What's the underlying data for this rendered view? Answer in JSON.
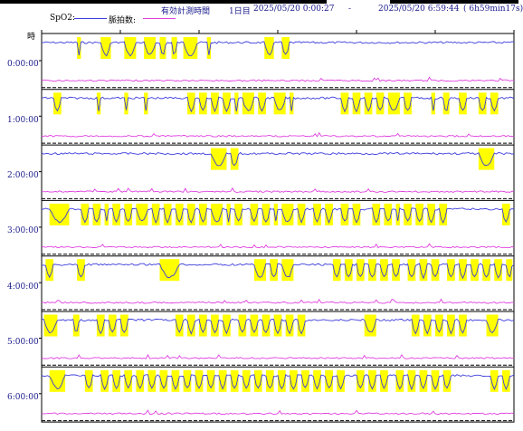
{
  "header": {
    "label": "有効計測時間",
    "day": "1日目",
    "start": "2025/05/20  0:00:27",
    "dash": "-",
    "end": "2025/05/20  6:59:44",
    "duration": "( 6h59min17s)"
  },
  "legend": {
    "spo2_label": "SpO2:",
    "pulse_label": "脈拍数:",
    "spo2_color": "#3c3cdc",
    "pulse_color": "#e040e0"
  },
  "y_axis_label": "時",
  "highlight_color": "#ffff00",
  "chart_data": {
    "type": "line",
    "x_unit": "minutes past hour",
    "x_range": [
      0,
      60
    ],
    "rows": [
      {
        "label": "0:00:00",
        "desat_events": [
          [
            4.5,
            5.0
          ],
          [
            7.5,
            8.8
          ],
          [
            10.5,
            12.0
          ],
          [
            13.0,
            14.5
          ],
          [
            15.0,
            15.8
          ],
          [
            16.5,
            17.2
          ],
          [
            18.0,
            19.8
          ],
          [
            21.0,
            21.5
          ],
          [
            28.3,
            29.5
          ],
          [
            30.5,
            31.5
          ]
        ]
      },
      {
        "label": "1:00:00",
        "desat_events": [
          [
            1.5,
            2.5
          ],
          [
            7.0,
            7.5
          ],
          [
            10.5,
            11.0
          ],
          [
            13.0,
            13.5
          ],
          [
            18.5,
            19.5
          ],
          [
            20.0,
            21.0
          ],
          [
            21.5,
            22.5
          ],
          [
            23.0,
            24.0
          ],
          [
            24.5,
            25.0
          ],
          [
            25.5,
            27.0
          ],
          [
            27.5,
            28.5
          ],
          [
            29.5,
            31.0
          ],
          [
            31.5,
            32.0
          ],
          [
            38.0,
            39.0
          ],
          [
            39.5,
            40.5
          ],
          [
            41.0,
            42.0
          ],
          [
            42.5,
            43.5
          ],
          [
            44.0,
            45.5
          ],
          [
            46.0,
            47.0
          ],
          [
            49.5,
            50.0
          ],
          [
            51.0,
            51.8
          ],
          [
            53.0,
            54.0
          ],
          [
            55.5,
            56.5
          ],
          [
            57.0,
            58.0
          ]
        ]
      },
      {
        "label": "2:00:00",
        "desat_events": [
          [
            21.5,
            23.5
          ],
          [
            24.0,
            25.0
          ],
          [
            55.5,
            57.5
          ]
        ]
      },
      {
        "label": "3:00:00",
        "desat_events": [
          [
            1.0,
            3.5
          ],
          [
            5.0,
            6.0
          ],
          [
            6.5,
            7.5
          ],
          [
            8.0,
            8.5
          ],
          [
            9.0,
            10.0
          ],
          [
            10.5,
            11.5
          ],
          [
            12.0,
            13.5
          ],
          [
            14.0,
            15.0
          ],
          [
            15.5,
            16.5
          ],
          [
            17.0,
            18.0
          ],
          [
            18.5,
            19.5
          ],
          [
            20.0,
            21.0
          ],
          [
            21.5,
            23.0
          ],
          [
            23.5,
            24.0
          ],
          [
            24.5,
            25.5
          ],
          [
            26.5,
            27.5
          ],
          [
            28.0,
            29.0
          ],
          [
            29.5,
            30.0
          ],
          [
            30.5,
            32.0
          ],
          [
            32.5,
            33.5
          ],
          [
            34.5,
            35.5
          ],
          [
            36.0,
            37.0
          ],
          [
            38.0,
            39.0
          ],
          [
            39.5,
            40.5
          ],
          [
            42.0,
            43.0
          ],
          [
            43.5,
            44.5
          ],
          [
            45.0,
            45.5
          ],
          [
            46.0,
            47.0
          ],
          [
            47.5,
            48.5
          ],
          [
            49.0,
            50.0
          ],
          [
            50.5,
            51.5
          ],
          [
            58.5,
            59.5
          ]
        ]
      },
      {
        "label": "4:00:00",
        "desat_events": [
          [
            0.5,
            1.5
          ],
          [
            4.5,
            5.5
          ],
          [
            15.0,
            17.5
          ],
          [
            27.0,
            28.5
          ],
          [
            29.0,
            30.0
          ],
          [
            30.5,
            32.0
          ],
          [
            37.0,
            38.0
          ],
          [
            38.5,
            39.5
          ],
          [
            40.0,
            41.0
          ],
          [
            41.5,
            42.5
          ],
          [
            43.0,
            44.0
          ],
          [
            44.5,
            45.5
          ],
          [
            46.5,
            47.5
          ],
          [
            48.0,
            49.0
          ],
          [
            49.5,
            50.5
          ],
          [
            51.5,
            52.5
          ],
          [
            53.0,
            54.0
          ],
          [
            54.5,
            55.5
          ],
          [
            56.0,
            57.0
          ],
          [
            57.5,
            58.5
          ],
          [
            59.0,
            59.8
          ]
        ]
      },
      {
        "label": "5:00:00",
        "desat_events": [
          [
            0.3,
            2.0
          ],
          [
            4.0,
            4.8
          ],
          [
            7.0,
            8.0
          ],
          [
            8.5,
            9.5
          ],
          [
            10.0,
            11.0
          ],
          [
            17.0,
            18.0
          ],
          [
            18.5,
            19.5
          ],
          [
            20.0,
            21.0
          ],
          [
            21.5,
            22.5
          ],
          [
            23.0,
            24.0
          ],
          [
            25.0,
            26.0
          ],
          [
            26.5,
            27.5
          ],
          [
            28.0,
            29.0
          ],
          [
            29.5,
            30.5
          ],
          [
            31.0,
            32.0
          ],
          [
            32.5,
            33.5
          ],
          [
            41.0,
            42.5
          ],
          [
            47.0,
            48.0
          ],
          [
            48.5,
            49.5
          ],
          [
            50.0,
            51.0
          ],
          [
            51.5,
            52.5
          ],
          [
            53.0,
            54.0
          ],
          [
            56.5,
            58.0
          ]
        ]
      },
      {
        "label": "6:00:00",
        "desat_events": [
          [
            1.0,
            3.0
          ],
          [
            5.5,
            6.5
          ],
          [
            7.5,
            8.5
          ],
          [
            9.0,
            10.0
          ],
          [
            10.5,
            11.5
          ],
          [
            12.0,
            13.0
          ],
          [
            13.5,
            14.5
          ],
          [
            15.0,
            16.0
          ],
          [
            16.5,
            17.5
          ],
          [
            18.0,
            19.0
          ],
          [
            19.5,
            20.5
          ],
          [
            21.0,
            22.0
          ],
          [
            22.5,
            23.5
          ],
          [
            24.0,
            25.0
          ],
          [
            25.5,
            26.5
          ],
          [
            27.0,
            28.0
          ],
          [
            28.5,
            29.5
          ],
          [
            30.0,
            31.0
          ],
          [
            31.5,
            32.5
          ],
          [
            33.0,
            34.0
          ],
          [
            34.5,
            35.5
          ],
          [
            36.0,
            37.0
          ],
          [
            37.5,
            38.5
          ],
          [
            40.0,
            41.0
          ],
          [
            41.5,
            42.5
          ],
          [
            43.0,
            44.0
          ],
          [
            45.0,
            46.0
          ],
          [
            46.5,
            47.5
          ],
          [
            48.0,
            49.0
          ],
          [
            49.5,
            50.5
          ],
          [
            51.0,
            52.0
          ],
          [
            57.0,
            58.0
          ],
          [
            58.5,
            59.5
          ]
        ]
      }
    ]
  }
}
